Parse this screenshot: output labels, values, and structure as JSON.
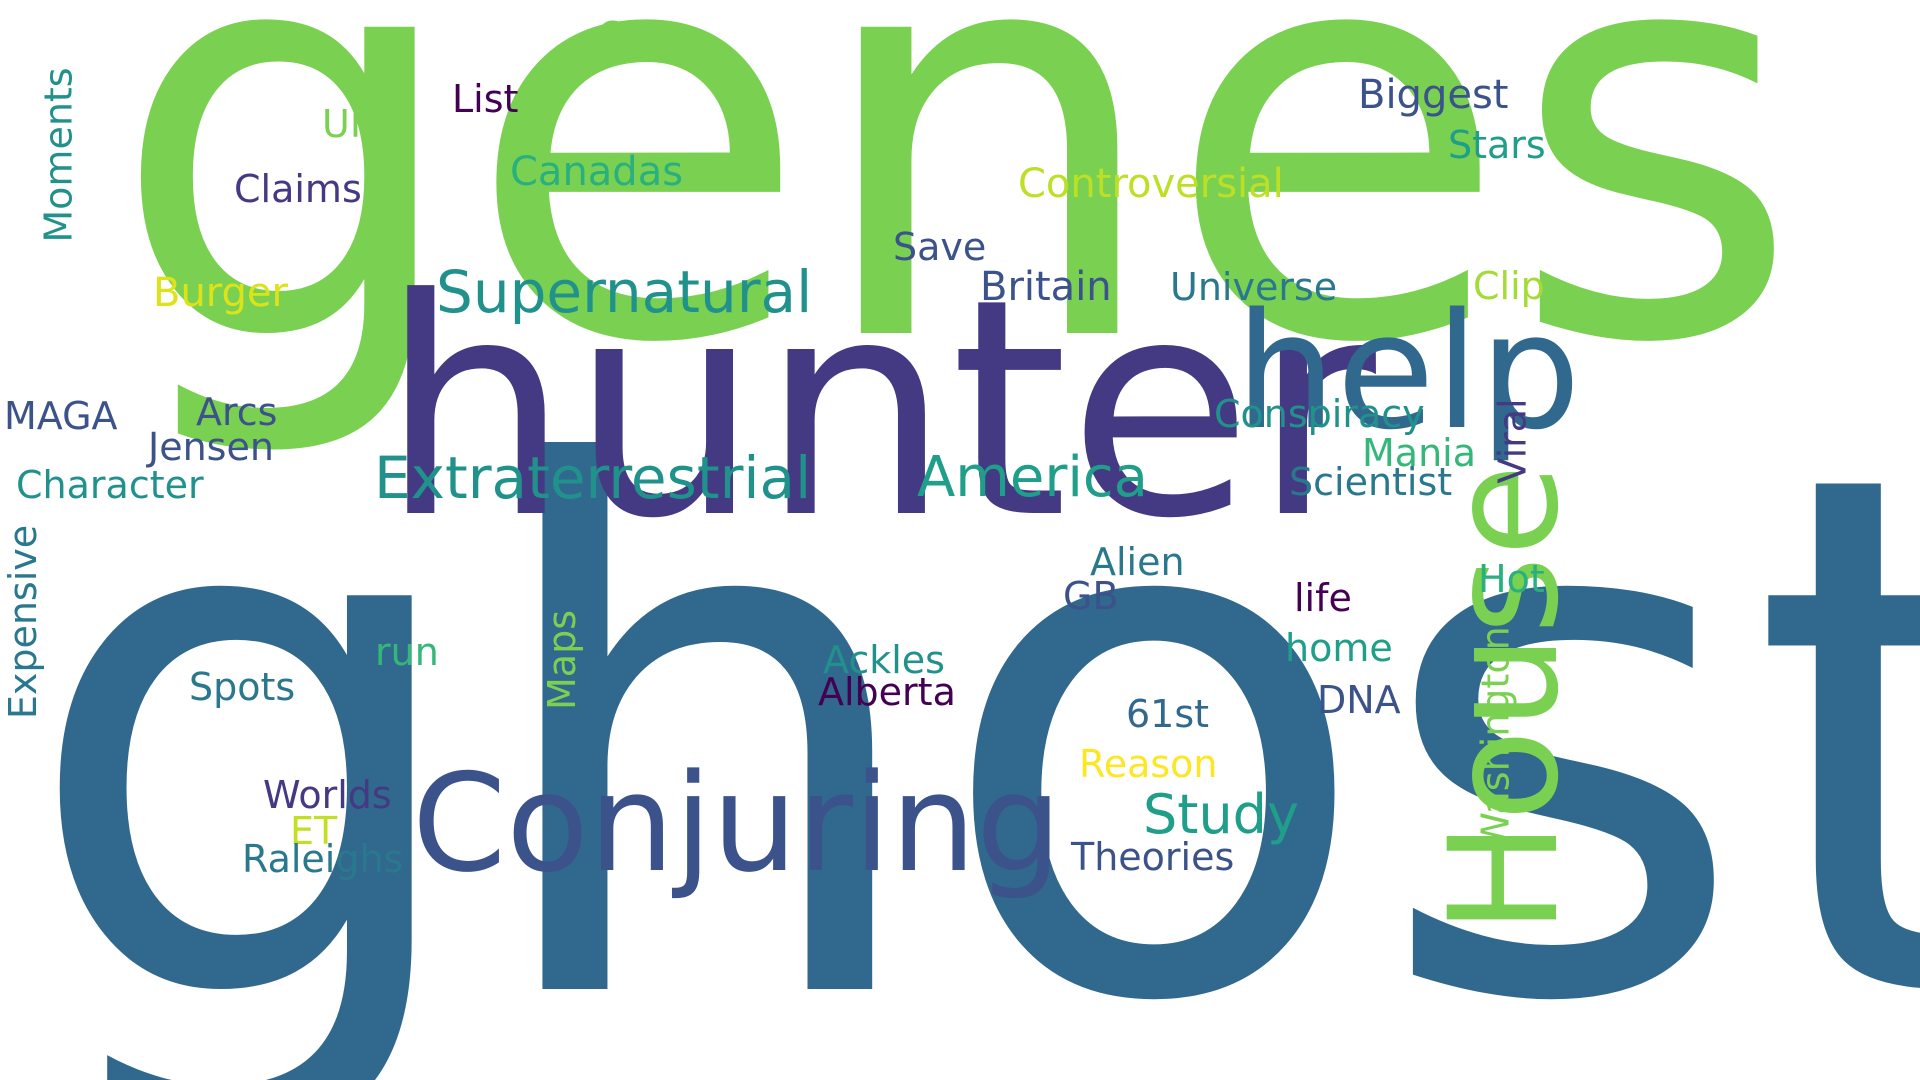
{
  "cloud": {
    "words": [
      {
        "text": "genes",
        "color": "#7ad151"
      },
      {
        "text": "ghost",
        "color": "#31688e"
      },
      {
        "text": "hunter",
        "color": "#443983"
      },
      {
        "text": "help",
        "color": "#31688e"
      },
      {
        "text": "House",
        "color": "#7ad151"
      },
      {
        "text": "Conjuring",
        "color": "#3b528b"
      },
      {
        "text": "Supernatural",
        "color": "#21918c"
      },
      {
        "text": "Extraterrestrial",
        "color": "#21918c"
      },
      {
        "text": "America",
        "color": "#1f9e89"
      },
      {
        "text": "Study",
        "color": "#1f9e89"
      },
      {
        "text": "Cal",
        "color": "#7ad151"
      },
      {
        "text": "List",
        "color": "#440154"
      },
      {
        "text": "UFO",
        "color": "#7ad151"
      },
      {
        "text": "Canadas",
        "color": "#2ab07f"
      },
      {
        "text": "Claims",
        "color": "#443983"
      },
      {
        "text": "Moments",
        "color": "#21918c"
      },
      {
        "text": "Biggest",
        "color": "#3b528b"
      },
      {
        "text": "Stars",
        "color": "#1f9e89"
      },
      {
        "text": "Controversial",
        "color": "#bddf26"
      },
      {
        "text": "Save",
        "color": "#3b528b"
      },
      {
        "text": "Burger",
        "color": "#dde318"
      },
      {
        "text": "Britain",
        "color": "#3b528b"
      },
      {
        "text": "Universe",
        "color": "#2a788e"
      },
      {
        "text": "Clip",
        "color": "#a5db36"
      },
      {
        "text": "MAGA",
        "color": "#3b528b"
      },
      {
        "text": "Arcs",
        "color": "#3b528b"
      },
      {
        "text": "Jensen",
        "color": "#3b528b"
      },
      {
        "text": "Character",
        "color": "#21918c"
      },
      {
        "text": "Conspiracy",
        "color": "#21918c"
      },
      {
        "text": "Mania",
        "color": "#35b779"
      },
      {
        "text": "Viral",
        "color": "#443983"
      },
      {
        "text": "Scientist",
        "color": "#2a788e"
      },
      {
        "text": "Expensive",
        "color": "#2a788e"
      },
      {
        "text": "Alien",
        "color": "#2a788e"
      },
      {
        "text": "GB",
        "color": "#3b528b"
      },
      {
        "text": "life",
        "color": "#440154"
      },
      {
        "text": "Hot",
        "color": "#2ab07f"
      },
      {
        "text": "home",
        "color": "#1f9e89"
      },
      {
        "text": "run",
        "color": "#35b779"
      },
      {
        "text": "Maps",
        "color": "#7ad151"
      },
      {
        "text": "Ackles",
        "color": "#21918c"
      },
      {
        "text": "Alberta",
        "color": "#440154"
      },
      {
        "text": "Spots",
        "color": "#2a788e"
      },
      {
        "text": "DNA",
        "color": "#3b528b"
      },
      {
        "text": "61st",
        "color": "#31688e"
      },
      {
        "text": "Washington",
        "color": "#7ad151"
      },
      {
        "text": "Reason",
        "color": "#fde725"
      },
      {
        "text": "Worlds",
        "color": "#443983"
      },
      {
        "text": "ET",
        "color": "#c2df23"
      },
      {
        "text": "Raleighs",
        "color": "#2a788e"
      },
      {
        "text": "Theories",
        "color": "#3b528b"
      }
    ]
  }
}
